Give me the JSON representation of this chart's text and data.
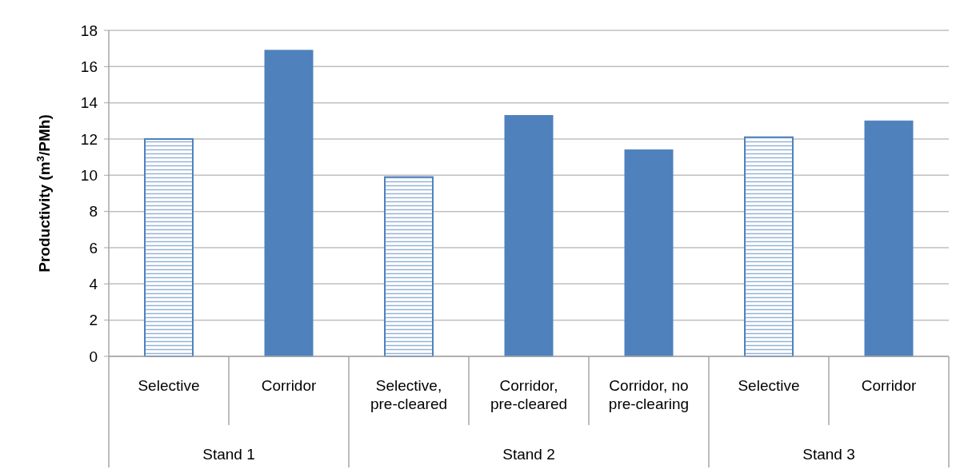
{
  "chart_data": {
    "type": "bar",
    "ylabel": "Productivity (m$^{3}$/PMh)",
    "categories": [
      "Selective",
      "Corridor",
      "Selective, pre-cleared",
      "Corridor, pre-cleared",
      "Corridor, no pre-clearing",
      "Selective",
      "Corridor"
    ],
    "annotations": [
      "Stand 1",
      "Stand 2",
      "Stand 3"
    ],
    "series": [
      {
        "color": "#4f81bd",
        "values": [
          12.0,
          null,
          9.9,
          null,
          null,
          12.1,
          null
        ]
      },
      {
        "color": "#4f81bd",
        "values": [
          null,
          16.9,
          null,
          13.3,
          11.4,
          null,
          13.0
        ]
      }
    ],
    "ylim": [
      0,
      18
    ],
    "yticks": [
      0,
      2,
      4,
      6,
      8,
      10,
      12,
      14,
      16,
      18
    ],
    "grid": "y"
  }
}
